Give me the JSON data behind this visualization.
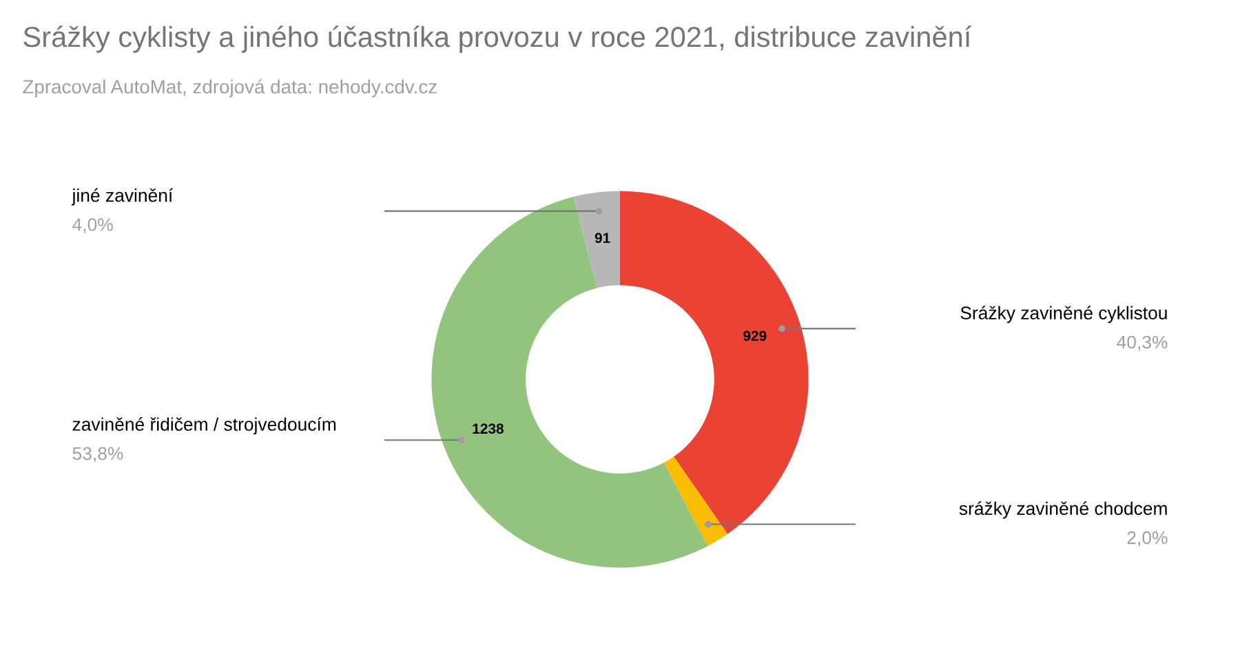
{
  "chart_data": {
    "type": "donut",
    "title": "Srážky cyklisty a jiného účastníka provozu v roce 2021, distribuce zavinění",
    "subtitle": "Zpracoval AutoMat, zdrojová data: nehody.cdv.cz",
    "categories": [
      "Srážky zaviněné cyklistou",
      "srážky zaviněné chodcem",
      "zaviněné řidičem / strojvedoucím",
      "jiné zavinění"
    ],
    "values": [
      929,
      45,
      1238,
      91
    ],
    "colors": [
      "#ea4335",
      "#fbbc04",
      "#93c47d",
      "#b7b7b7"
    ],
    "value_labels": [
      "929",
      null,
      "1238",
      "91"
    ],
    "annotations": [
      "40,3%",
      "2,0%",
      "53,8%",
      "4,0%"
    ],
    "legend": false
  }
}
